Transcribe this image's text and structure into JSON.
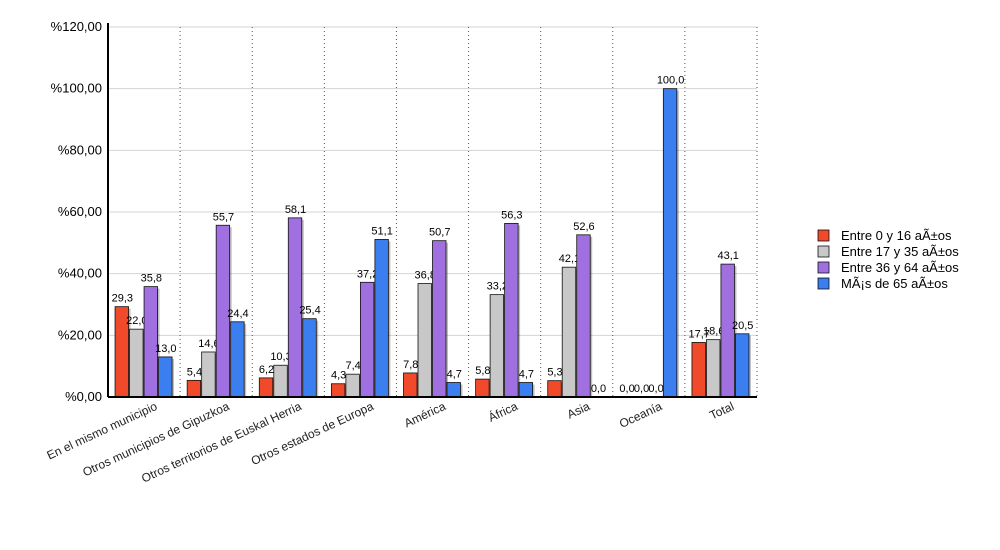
{
  "chart_data": {
    "type": "bar",
    "title": "",
    "xlabel": "",
    "ylabel": "",
    "ylim": [
      0,
      120
    ],
    "y_ticks": [
      "%0,00",
      "%20,00",
      "%40,00",
      "%60,00",
      "%80,00",
      "%100,00",
      "%120,00"
    ],
    "y_tick_values": [
      0,
      20,
      40,
      60,
      80,
      100,
      120
    ],
    "categories": [
      "En el mismo municipio",
      "Otros municipios de Gipuzkoa",
      "Otros territorios de Euskal Herria",
      "Otros estados de Europa",
      "América",
      "África",
      "Asia",
      "Oceanía",
      "Total"
    ],
    "series": [
      {
        "name": "Entre 0 y 16 aÃ±os",
        "color": "#f04a2b",
        "values": [
          29.3,
          5.4,
          6.2,
          4.3,
          7.8,
          5.8,
          5.3,
          0.0,
          17.7
        ],
        "labels": [
          "29,3",
          "5,4",
          "6,2",
          "4,3",
          "7,8",
          "5,8",
          "5,3",
          "0,0",
          "17,7"
        ]
      },
      {
        "name": "Entre 17 y 35 aÃ±os",
        "color": "#c8c8c8",
        "values": [
          22.0,
          14.6,
          10.3,
          7.4,
          36.8,
          33.2,
          42.1,
          0.0,
          18.6
        ],
        "labels": [
          "22,0",
          "14,6",
          "10,3",
          "7,4",
          "36,8",
          "33,2",
          "42,1",
          "0,0",
          "18,6"
        ]
      },
      {
        "name": "Entre 36 y 64 aÃ±os",
        "color": "#a070e0",
        "values": [
          35.8,
          55.7,
          58.1,
          37.2,
          50.7,
          56.3,
          52.6,
          0.0,
          43.1
        ],
        "labels": [
          "35,8",
          "55,7",
          "58,1",
          "37,2",
          "50,7",
          "56,3",
          "52,6",
          "0,0",
          "43,1"
        ]
      },
      {
        "name": "MÃ¡s de 65 aÃ±os",
        "color": "#3a7ef0",
        "values": [
          13.0,
          24.4,
          25.4,
          51.1,
          4.7,
          4.7,
          0.0,
          100.0,
          20.5
        ],
        "labels": [
          "13,0",
          "24,4",
          "25,4",
          "51,1",
          "4,7",
          "4,7",
          "0,0",
          "100,0",
          "20,5"
        ]
      }
    ],
    "grid": true,
    "legend_position": "right"
  }
}
